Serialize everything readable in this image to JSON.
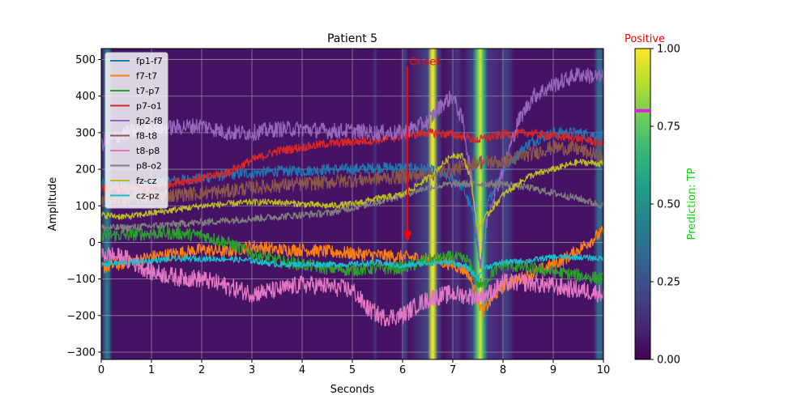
{
  "chart_data": {
    "type": "line",
    "title": "Patient 5",
    "xlabel": "Seconds",
    "ylabel": "Amplitude",
    "xlim": [
      0,
      10
    ],
    "ylim": [
      -320,
      530
    ],
    "xticks": [
      0,
      1,
      2,
      3,
      4,
      5,
      6,
      7,
      8,
      9,
      10
    ],
    "yticks": [
      -300,
      -200,
      -100,
      0,
      100,
      200,
      300,
      400,
      500
    ],
    "grid": true,
    "legend_position": "top-left",
    "background_colormap": "viridis",
    "background_prediction": [
      {
        "x": 0.0,
        "v": 0.05
      },
      {
        "x": 0.1,
        "v": 0.4
      },
      {
        "x": 0.15,
        "v": 0.35
      },
      {
        "x": 0.22,
        "v": 0.05
      },
      {
        "x": 5.4,
        "v": 0.05
      },
      {
        "x": 5.45,
        "v": 0.15
      },
      {
        "x": 5.5,
        "v": 0.05
      },
      {
        "x": 5.95,
        "v": 0.05
      },
      {
        "x": 6.05,
        "v": 0.18
      },
      {
        "x": 6.12,
        "v": 0.05
      },
      {
        "x": 6.5,
        "v": 0.2
      },
      {
        "x": 6.58,
        "v": 0.95
      },
      {
        "x": 6.62,
        "v": 0.95
      },
      {
        "x": 6.7,
        "v": 0.2
      },
      {
        "x": 6.8,
        "v": 0.05
      },
      {
        "x": 7.0,
        "v": 0.1
      },
      {
        "x": 7.1,
        "v": 0.15
      },
      {
        "x": 7.2,
        "v": 0.05
      },
      {
        "x": 7.4,
        "v": 0.2
      },
      {
        "x": 7.48,
        "v": 0.7
      },
      {
        "x": 7.55,
        "v": 0.95
      },
      {
        "x": 7.62,
        "v": 0.6
      },
      {
        "x": 7.7,
        "v": 0.15
      },
      {
        "x": 7.95,
        "v": 0.1
      },
      {
        "x": 8.05,
        "v": 0.2
      },
      {
        "x": 8.15,
        "v": 0.12
      },
      {
        "x": 8.22,
        "v": 0.05
      },
      {
        "x": 9.8,
        "v": 0.05
      },
      {
        "x": 9.9,
        "v": 0.35
      },
      {
        "x": 9.96,
        "v": 0.3
      },
      {
        "x": 10.0,
        "v": 0.1
      }
    ],
    "series": [
      {
        "name": "fp1-f7",
        "color": "#1f77b4",
        "noise": 15,
        "points": [
          [
            0,
            160
          ],
          [
            0.5,
            150
          ],
          [
            1,
            160
          ],
          [
            1.5,
            170
          ],
          [
            2,
            175
          ],
          [
            2.5,
            185
          ],
          [
            3,
            190
          ],
          [
            3.5,
            195
          ],
          [
            4,
            195
          ],
          [
            4.5,
            200
          ],
          [
            5,
            200
          ],
          [
            5.5,
            205
          ],
          [
            6,
            205
          ],
          [
            6.5,
            200
          ],
          [
            7,
            175
          ],
          [
            7.2,
            150
          ],
          [
            7.4,
            80
          ],
          [
            7.55,
            -70
          ],
          [
            7.7,
            110
          ],
          [
            8,
            200
          ],
          [
            8.5,
            270
          ],
          [
            9,
            300
          ],
          [
            9.5,
            300
          ],
          [
            10,
            290
          ]
        ]
      },
      {
        "name": "f7-t7",
        "color": "#ff7f0e",
        "noise": 18,
        "points": [
          [
            0,
            -70
          ],
          [
            0.5,
            -55
          ],
          [
            1,
            -40
          ],
          [
            1.5,
            -30
          ],
          [
            2,
            -20
          ],
          [
            2.5,
            -25
          ],
          [
            3,
            -10
          ],
          [
            3.5,
            -20
          ],
          [
            4,
            -20
          ],
          [
            4.5,
            -25
          ],
          [
            5,
            -30
          ],
          [
            5.5,
            -35
          ],
          [
            6,
            -40
          ],
          [
            6.5,
            -45
          ],
          [
            7,
            -60
          ],
          [
            7.3,
            -80
          ],
          [
            7.5,
            -160
          ],
          [
            7.6,
            -190
          ],
          [
            7.8,
            -150
          ],
          [
            8,
            -120
          ],
          [
            8.5,
            -90
          ],
          [
            9,
            -60
          ],
          [
            9.3,
            -40
          ],
          [
            9.6,
            -10
          ],
          [
            10,
            30
          ]
        ]
      },
      {
        "name": "t7-p7",
        "color": "#2ca02c",
        "noise": 18,
        "points": [
          [
            0,
            20
          ],
          [
            0.5,
            20
          ],
          [
            1,
            25
          ],
          [
            1.5,
            25
          ],
          [
            2,
            20
          ],
          [
            2.5,
            0
          ],
          [
            3,
            -30
          ],
          [
            3.5,
            -50
          ],
          [
            4,
            -60
          ],
          [
            4.5,
            -70
          ],
          [
            5,
            -75
          ],
          [
            5.5,
            -70
          ],
          [
            6,
            -70
          ],
          [
            6.5,
            -50
          ],
          [
            7,
            -40
          ],
          [
            7.3,
            -50
          ],
          [
            7.5,
            -110
          ],
          [
            7.6,
            -120
          ],
          [
            7.8,
            -80
          ],
          [
            8,
            -60
          ],
          [
            8.5,
            -70
          ],
          [
            9,
            -80
          ],
          [
            9.5,
            -90
          ],
          [
            10,
            -100
          ]
        ]
      },
      {
        "name": "p7-o1",
        "color": "#d62728",
        "noise": 12,
        "points": [
          [
            0,
            150
          ],
          [
            0.5,
            145
          ],
          [
            1,
            150
          ],
          [
            1.5,
            165
          ],
          [
            2,
            175
          ],
          [
            2.5,
            190
          ],
          [
            3,
            225
          ],
          [
            3.5,
            250
          ],
          [
            4,
            260
          ],
          [
            4.5,
            270
          ],
          [
            5,
            275
          ],
          [
            5.5,
            280
          ],
          [
            6,
            290
          ],
          [
            6.5,
            300
          ],
          [
            7,
            295
          ],
          [
            7.5,
            280
          ],
          [
            7.8,
            290
          ],
          [
            8,
            295
          ],
          [
            8.5,
            300
          ],
          [
            9,
            290
          ],
          [
            9.5,
            285
          ],
          [
            10,
            270
          ]
        ]
      },
      {
        "name": "fp2-f8",
        "color": "#9467bd",
        "noise": 22,
        "points": [
          [
            0,
            270
          ],
          [
            0.5,
            300
          ],
          [
            1,
            310
          ],
          [
            1.5,
            315
          ],
          [
            2,
            320
          ],
          [
            2.5,
            300
          ],
          [
            3,
            300
          ],
          [
            3.5,
            310
          ],
          [
            4,
            310
          ],
          [
            4.5,
            305
          ],
          [
            5,
            305
          ],
          [
            5.5,
            300
          ],
          [
            6,
            300
          ],
          [
            6.5,
            330
          ],
          [
            6.8,
            380
          ],
          [
            7,
            400
          ],
          [
            7.2,
            330
          ],
          [
            7.4,
            150
          ],
          [
            7.55,
            -70
          ],
          [
            7.7,
            80
          ],
          [
            8,
            200
          ],
          [
            8.3,
            330
          ],
          [
            8.6,
            400
          ],
          [
            9,
            430
          ],
          [
            9.5,
            460
          ],
          [
            10,
            450
          ]
        ]
      },
      {
        "name": "f8-t8",
        "color": "#8c564b",
        "noise": 20,
        "points": [
          [
            0,
            110
          ],
          [
            0.5,
            120
          ],
          [
            1,
            125
          ],
          [
            1.5,
            130
          ],
          [
            2,
            135
          ],
          [
            2.5,
            140
          ],
          [
            3,
            150
          ],
          [
            3.5,
            155
          ],
          [
            4,
            160
          ],
          [
            4.5,
            165
          ],
          [
            5,
            170
          ],
          [
            5.5,
            175
          ],
          [
            6,
            180
          ],
          [
            6.5,
            185
          ],
          [
            7,
            200
          ],
          [
            7.5,
            220
          ],
          [
            8,
            220
          ],
          [
            8.5,
            240
          ],
          [
            9,
            260
          ],
          [
            9.5,
            255
          ],
          [
            10,
            230
          ]
        ]
      },
      {
        "name": "t8-p8",
        "color": "#e377c2",
        "noise": 25,
        "points": [
          [
            0,
            -30
          ],
          [
            0.5,
            -45
          ],
          [
            1,
            -80
          ],
          [
            1.5,
            -95
          ],
          [
            2,
            -100
          ],
          [
            2.5,
            -120
          ],
          [
            3,
            -140
          ],
          [
            3.5,
            -130
          ],
          [
            4,
            -115
          ],
          [
            4.5,
            -120
          ],
          [
            5,
            -130
          ],
          [
            5.3,
            -180
          ],
          [
            5.6,
            -205
          ],
          [
            6,
            -200
          ],
          [
            6.3,
            -170
          ],
          [
            6.6,
            -150
          ],
          [
            7,
            -140
          ],
          [
            7.5,
            -150
          ],
          [
            7.8,
            -135
          ],
          [
            8,
            -110
          ],
          [
            8.5,
            -110
          ],
          [
            9,
            -120
          ],
          [
            9.5,
            -130
          ],
          [
            10,
            -140
          ]
        ]
      },
      {
        "name": "p8-o2",
        "color": "#7f7f7f",
        "noise": 10,
        "points": [
          [
            0,
            40
          ],
          [
            0.5,
            40
          ],
          [
            1,
            45
          ],
          [
            1.5,
            50
          ],
          [
            2,
            55
          ],
          [
            2.5,
            60
          ],
          [
            3,
            65
          ],
          [
            3.5,
            70
          ],
          [
            4,
            75
          ],
          [
            4.5,
            80
          ],
          [
            5,
            95
          ],
          [
            5.5,
            110
          ],
          [
            6,
            130
          ],
          [
            6.5,
            150
          ],
          [
            7,
            160
          ],
          [
            7.5,
            160
          ],
          [
            8,
            160
          ],
          [
            8.5,
            150
          ],
          [
            9,
            135
          ],
          [
            9.5,
            120
          ],
          [
            10,
            100
          ]
        ]
      },
      {
        "name": "fz-cz",
        "color": "#bcbd22",
        "noise": 9,
        "points": [
          [
            0,
            75
          ],
          [
            0.5,
            70
          ],
          [
            1,
            80
          ],
          [
            1.5,
            90
          ],
          [
            2,
            100
          ],
          [
            2.5,
            105
          ],
          [
            3,
            110
          ],
          [
            3.5,
            110
          ],
          [
            4,
            105
          ],
          [
            4.5,
            100
          ],
          [
            5,
            105
          ],
          [
            5.5,
            120
          ],
          [
            6,
            130
          ],
          [
            6.5,
            175
          ],
          [
            7,
            240
          ],
          [
            7.2,
            235
          ],
          [
            7.35,
            180
          ],
          [
            7.5,
            30
          ],
          [
            7.6,
            60
          ],
          [
            8,
            130
          ],
          [
            8.5,
            180
          ],
          [
            9,
            200
          ],
          [
            9.5,
            220
          ],
          [
            10,
            215
          ]
        ]
      },
      {
        "name": "cz-pz",
        "color": "#17becf",
        "noise": 8,
        "points": [
          [
            0,
            -60
          ],
          [
            0.5,
            -55
          ],
          [
            1,
            -50
          ],
          [
            1.5,
            -45
          ],
          [
            2,
            -45
          ],
          [
            2.5,
            -45
          ],
          [
            3,
            -50
          ],
          [
            3.5,
            -60
          ],
          [
            4,
            -60
          ],
          [
            4.5,
            -60
          ],
          [
            5,
            -60
          ],
          [
            5.5,
            -55
          ],
          [
            6,
            -65
          ],
          [
            6.5,
            -55
          ],
          [
            7,
            -55
          ],
          [
            7.3,
            -70
          ],
          [
            7.5,
            -100
          ],
          [
            7.6,
            -70
          ],
          [
            8,
            -55
          ],
          [
            8.5,
            -50
          ],
          [
            9,
            -40
          ],
          [
            9.5,
            -40
          ],
          [
            10,
            -45
          ]
        ]
      }
    ],
    "annotation": {
      "text": "Onset",
      "x": 6.1,
      "y_from": 480,
      "y_to": 0,
      "color": "#ff0000"
    },
    "colorbar": {
      "label": "Prediction: TP",
      "label_color": "#00dd00",
      "ticks": [
        "0.00",
        "0.25",
        "0.50",
        "0.75",
        "1.00"
      ],
      "threshold": 0.8,
      "threshold_color": "#e020e0",
      "top_label": "Positive",
      "top_label_color": "#ff0000"
    }
  }
}
